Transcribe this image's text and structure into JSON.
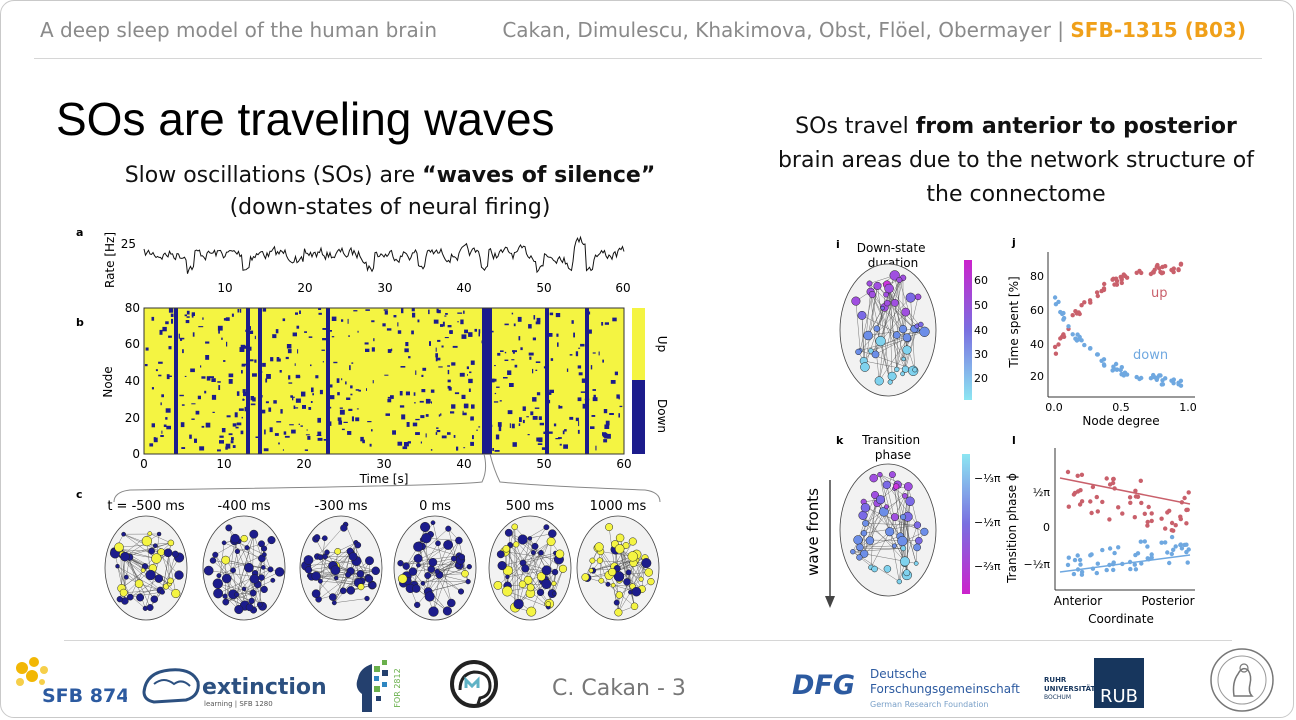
{
  "header": {
    "left": "A deep sleep model of the human brain",
    "authors": "Cakan, Dimulescu, Khakimova, Obst, Flöel, Obermayer |",
    "grant": "SFB-1315 (B03)"
  },
  "title": "SOs are traveling waves",
  "subtitle": {
    "line1_pre": "Slow oscillations (SOs) are ",
    "line1_bold": "“waves of silence”",
    "line2": "(down-states of neural firing)"
  },
  "right_text": {
    "pre": "SOs travel ",
    "bold": "from anterior to posterior",
    "post": " brain areas due to the network structure of the connectome"
  },
  "panel_a": {
    "letter": "a",
    "ylabel": "Rate [Hz]",
    "ytick": "25",
    "xticks": [
      "10",
      "20",
      "30",
      "40",
      "50",
      "60"
    ]
  },
  "panel_b": {
    "letter": "b",
    "ylabel": "Node",
    "xlabel": "Time [s]",
    "yticks": [
      "0",
      "20",
      "40",
      "60",
      "80"
    ],
    "xticks": [
      "0",
      "10",
      "20",
      "30",
      "40",
      "50",
      "60"
    ],
    "legend_up": "Up",
    "legend_down": "Down",
    "colors": {
      "up": "#f4f442",
      "down": "#1c1c8c"
    }
  },
  "panel_c": {
    "letter": "c",
    "times": [
      "t = -500 ms",
      "-400 ms",
      "-300 ms",
      "0 ms",
      "500 ms",
      "1000 ms"
    ]
  },
  "panel_i": {
    "letter": "i",
    "title": "Down-state duration",
    "colorbar_ticks": [
      "60",
      "50",
      "40",
      "30",
      "20"
    ]
  },
  "panel_j": {
    "letter": "j",
    "ylabel": "Time spent [%]",
    "xlabel": "Node degree",
    "yticks": [
      "80",
      "60",
      "40",
      "20"
    ],
    "xticks": [
      "0.0",
      "0.5",
      "1.0"
    ],
    "label_up": "up",
    "label_down": "down",
    "colors": {
      "up": "#c9606b",
      "down": "#6fa8e0"
    }
  },
  "panel_k": {
    "letter": "k",
    "title": "Transition phase",
    "arrow_label": "wave fronts",
    "colorbar_ticks": [
      "−⅓π",
      "−½π",
      "−⅔π"
    ]
  },
  "panel_l": {
    "letter": "l",
    "ylabel": "Transition phase ϕ",
    "xlabel": "Coordinate",
    "yticks": [
      "½π",
      "0",
      "−½π"
    ],
    "xticks": [
      "Anterior",
      "Posterior"
    ]
  },
  "footer": {
    "presenter": "C. Cakan - 3",
    "logos": {
      "sfb874": "SFB 874",
      "extinction": "extinction",
      "extinction_sub": "learning | SFB 1280",
      "for2812": "FOR 2812",
      "dfg": "DFG",
      "dfg_line1": "Deutsche",
      "dfg_line2": "Forschungsgemeinschaft",
      "dfg_line3": "German Research Foundation",
      "ruhr_line1": "RUHR",
      "ruhr_line2": "UNIVERSITÄT",
      "ruhr_line3": "BOCHUM",
      "rub": "RUB"
    }
  }
}
